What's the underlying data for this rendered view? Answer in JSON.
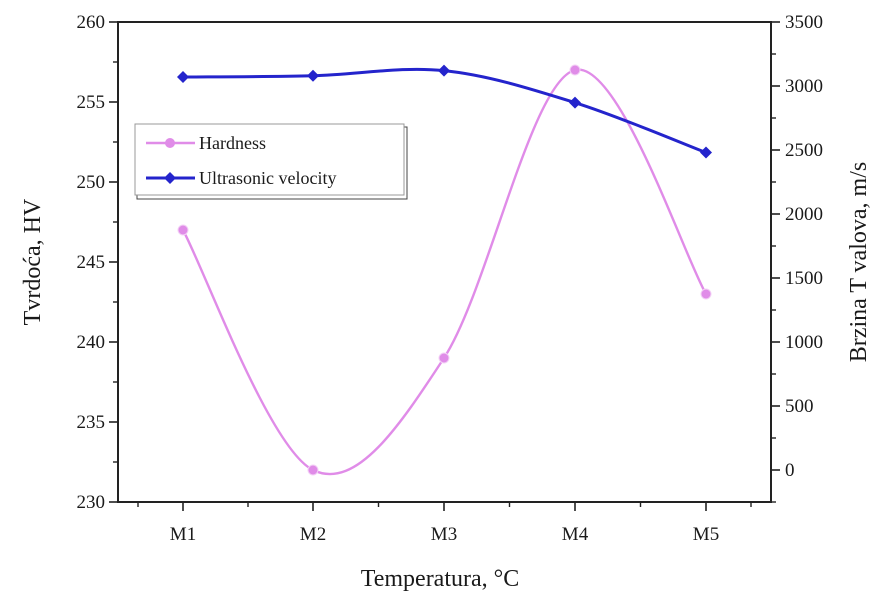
{
  "chart_data": {
    "type": "line",
    "categories": [
      "M1",
      "M2",
      "M3",
      "M4",
      "M5"
    ],
    "xlabel": "Temperatura, °C",
    "ylabel_left": "Tvrdoća, HV",
    "ylabel_right": "Brzina T valova, m/s",
    "ylim_left": [
      230,
      260
    ],
    "ylim_right": [
      -250,
      3500
    ],
    "yticks_left": [
      "230",
      "235",
      "240",
      "245",
      "250",
      "255",
      "260"
    ],
    "yticks_right": [
      "0",
      "500",
      "1000",
      "1500",
      "2000",
      "2500",
      "3000",
      "3500"
    ],
    "legend_position": "upper-left",
    "series": [
      {
        "name": "Hardness",
        "axis": "left",
        "color": "#e08ce8",
        "marker": "circle",
        "smooth": true,
        "values": [
          247,
          232,
          239,
          257,
          243
        ]
      },
      {
        "name": "Ultrasonic velocity",
        "axis": "right",
        "color": "#2424cc",
        "marker": "diamond",
        "smooth": true,
        "values": [
          3070,
          3080,
          3120,
          2870,
          2480
        ]
      }
    ]
  }
}
